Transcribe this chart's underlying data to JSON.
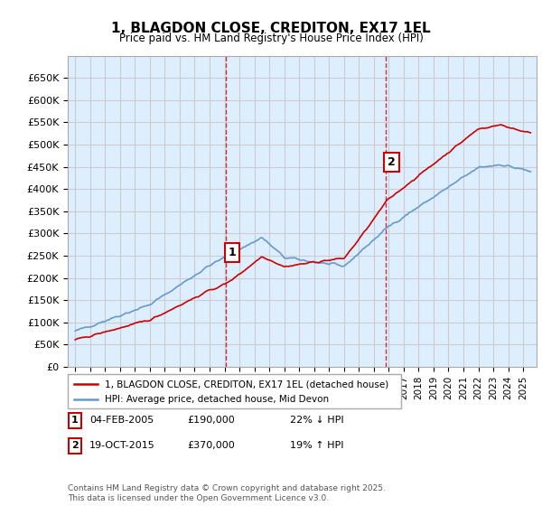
{
  "title": "1, BLAGDON CLOSE, CREDITON, EX17 1EL",
  "subtitle": "Price paid vs. HM Land Registry's House Price Index (HPI)",
  "legend_line1": "1, BLAGDON CLOSE, CREDITON, EX17 1EL (detached house)",
  "legend_line2": "HPI: Average price, detached house, Mid Devon",
  "annotation1_label": "1",
  "annotation1_date": "04-FEB-2005",
  "annotation1_price": "£190,000",
  "annotation1_hpi": "22% ↓ HPI",
  "annotation2_label": "2",
  "annotation2_date": "19-OCT-2015",
  "annotation2_price": "£370,000",
  "annotation2_hpi": "19% ↑ HPI",
  "footer": "Contains HM Land Registry data © Crown copyright and database right 2025.\nThis data is licensed under the Open Government Licence v3.0.",
  "red_color": "#cc0000",
  "blue_color": "#6699cc",
  "vline_color": "#cc0000",
  "grid_color": "#cccccc",
  "bg_color": "#ddeeff",
  "ylim_min": 0,
  "ylim_max": 700000,
  "xstart_year": 1995,
  "xend_year": 2026
}
